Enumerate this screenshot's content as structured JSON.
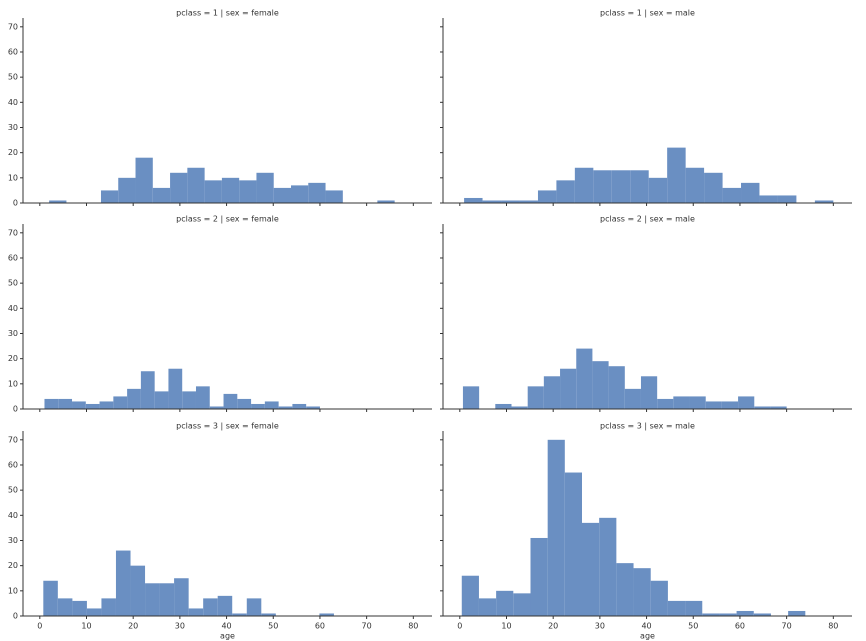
{
  "chart_data": [
    {
      "type": "histogram",
      "title": "pclass = 1 | sex = female",
      "color": "#6a8fc2",
      "bins": [
        2,
        5.7,
        9.4,
        13.1,
        16.8,
        20.5,
        24.2,
        27.9,
        31.6,
        35.3,
        39,
        42.7,
        46.4,
        50.1,
        53.8,
        57.5,
        61.2,
        64.9,
        68.6,
        72.3,
        76
      ],
      "values": [
        1,
        0,
        0,
        5,
        10,
        18,
        6,
        12,
        14,
        9,
        10,
        9,
        12,
        6,
        7,
        8,
        5,
        0,
        0,
        1
      ],
      "xlim": [
        -3.6,
        84
      ],
      "ylim": [
        0,
        73.5
      ],
      "xticks": [
        0,
        10,
        20,
        30,
        40,
        50,
        60,
        70,
        80
      ],
      "yticks": [
        0,
        10,
        20,
        30,
        40,
        50,
        60,
        70
      ]
    },
    {
      "type": "histogram",
      "title": "pclass = 1 | sex = male",
      "color": "#6a8fc2",
      "bins": [
        0.92,
        4.87,
        8.83,
        12.78,
        16.74,
        20.69,
        24.64,
        28.6,
        32.55,
        36.51,
        40.46,
        44.41,
        48.37,
        52.32,
        56.28,
        60.23,
        64.18,
        68.14,
        72.09,
        76.05,
        80
      ],
      "values": [
        2,
        1,
        1,
        1,
        5,
        9,
        14,
        13,
        13,
        13,
        10,
        22,
        14,
        12,
        6,
        8,
        3,
        3,
        0,
        1
      ],
      "xlim": [
        -3.6,
        84
      ],
      "ylim": [
        0,
        73.5
      ],
      "xticks": [
        0,
        10,
        20,
        30,
        40,
        50,
        60,
        70,
        80
      ],
      "yticks": [
        0,
        10,
        20,
        30,
        40,
        50,
        60,
        70
      ]
    },
    {
      "type": "histogram",
      "title": "pclass = 2 | sex = female",
      "color": "#6a8fc2",
      "bins": [
        1,
        3.95,
        6.9,
        9.85,
        12.8,
        15.75,
        18.7,
        21.65,
        24.6,
        27.55,
        30.5,
        33.45,
        36.4,
        39.35,
        42.3,
        45.25,
        48.2,
        51.15,
        54.1,
        57.05,
        60
      ],
      "values": [
        4,
        4,
        3,
        2,
        3,
        5,
        8,
        15,
        7,
        16,
        7,
        9,
        1,
        6,
        4,
        2,
        3,
        1,
        2,
        1
      ],
      "xlim": [
        -3.6,
        84
      ],
      "ylim": [
        0,
        73.5
      ],
      "xticks": [
        0,
        10,
        20,
        30,
        40,
        50,
        60,
        70,
        80
      ],
      "yticks": [
        0,
        10,
        20,
        30,
        40,
        50,
        60,
        70
      ]
    },
    {
      "type": "histogram",
      "title": "pclass = 2 | sex = male",
      "color": "#6a8fc2",
      "bins": [
        0.67,
        4.14,
        7.6,
        11.07,
        14.54,
        18,
        21.47,
        24.94,
        28.4,
        31.87,
        35.34,
        38.8,
        42.27,
        45.73,
        49.2,
        52.67,
        56.13,
        59.6,
        63.07,
        66.53,
        70
      ],
      "values": [
        9,
        0,
        2,
        1,
        9,
        13,
        16,
        24,
        19,
        17,
        8,
        13,
        4,
        5,
        5,
        3,
        3,
        5,
        1,
        1
      ],
      "xlim": [
        -3.6,
        84
      ],
      "ylim": [
        0,
        73.5
      ],
      "xticks": [
        0,
        10,
        20,
        30,
        40,
        50,
        60,
        70,
        80
      ],
      "yticks": [
        0,
        10,
        20,
        30,
        40,
        50,
        60,
        70
      ]
    },
    {
      "type": "histogram",
      "title": "pclass = 3 | sex = female",
      "xlabel": "age",
      "color": "#6a8fc2",
      "bins": [
        0.75,
        3.86,
        6.98,
        10.09,
        13.2,
        16.31,
        19.43,
        22.54,
        25.65,
        28.76,
        31.88,
        34.99,
        38.1,
        41.21,
        44.33,
        47.44,
        50.55,
        53.66,
        56.78,
        59.89,
        63
      ],
      "values": [
        14,
        7,
        6,
        3,
        7,
        26,
        20,
        13,
        13,
        15,
        3,
        7,
        8,
        1,
        7,
        1,
        0,
        0,
        0,
        1
      ],
      "xlim": [
        -3.6,
        84
      ],
      "ylim": [
        0,
        73.5
      ],
      "xticks": [
        0,
        10,
        20,
        30,
        40,
        50,
        60,
        70,
        80
      ],
      "yticks": [
        0,
        10,
        20,
        30,
        40,
        50,
        60,
        70
      ]
    },
    {
      "type": "histogram",
      "title": "pclass = 3 | sex = male",
      "xlabel": "age",
      "color": "#6a8fc2",
      "bins": [
        0.42,
        4.1,
        7.78,
        11.46,
        15.14,
        18.82,
        22.49,
        26.17,
        29.85,
        33.53,
        37.21,
        40.89,
        44.57,
        48.25,
        51.93,
        55.61,
        59.28,
        62.96,
        66.64,
        70.32,
        74
      ],
      "values": [
        16,
        7,
        10,
        9,
        31,
        70,
        57,
        37,
        39,
        21,
        19,
        14,
        6,
        6,
        1,
        1,
        2,
        1,
        0,
        2
      ],
      "xlim": [
        -3.6,
        84
      ],
      "ylim": [
        0,
        73.5
      ],
      "xticks": [
        0,
        10,
        20,
        30,
        40,
        50,
        60,
        70,
        80
      ],
      "yticks": [
        0,
        10,
        20,
        30,
        40,
        50,
        60,
        70
      ]
    }
  ]
}
